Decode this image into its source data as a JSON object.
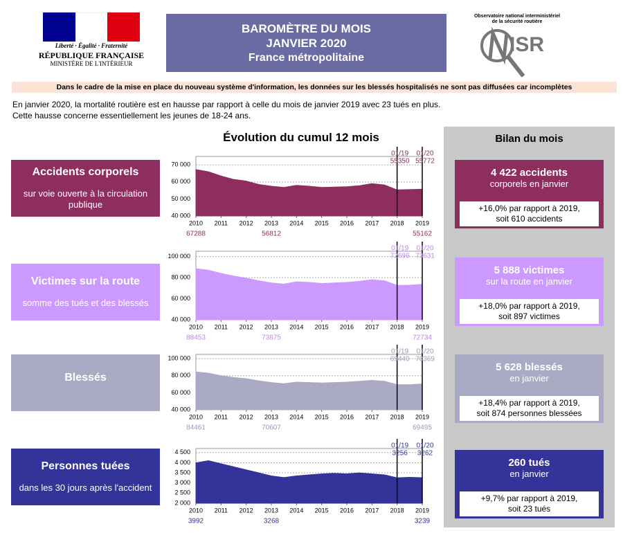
{
  "header": {
    "motto": "Liberté · Égalité · Fraternité",
    "republic": "RÉPUBLIQUE FRANÇAISE",
    "ministry": "MINISTÈRE DE L'INTÉRIEUR",
    "title": [
      "BAROMÈTRE DU MOIS",
      "JANVIER 2020",
      "France métropolitaine"
    ],
    "observatory": [
      "Observatoire national interministériel",
      "de la sécurité routière"
    ],
    "logo": "ISR"
  },
  "notice": "Dans le cadre de la mise en place du nouveau système d'information, les données sur les blessés hospitalisés ne sont pas diffusées car incomplètes",
  "intro": [
    "En janvier 2020, la mortalité routière est en hausse par rapport à celle du mois de janvier 2019 avec 23 tués en plus.",
    "Cette hausse concerne essentiellement les jeunes de 18-24 ans."
  ],
  "chart_title": "Évolution du cumul 12 mois",
  "summary_title": "Bilan du mois",
  "sections": [
    {
      "label": "Accidents corporels",
      "sublabel": "sur voie ouverte à la circulation publique",
      "summary": {
        "headline": "4 422 accidents",
        "subline": "corporels en janvier",
        "comparison": [
          "+16,0% par rapport à 2019,",
          "soit 610 accidents"
        ]
      }
    },
    {
      "label": "Victimes sur la route",
      "sublabel": "somme des tués et des blessés",
      "summary": {
        "headline": "5 888 victimes",
        "subline": "sur la route en janvier",
        "comparison": [
          "+18,0% par rapport à 2019,",
          "soit 897 victimes"
        ]
      }
    },
    {
      "label": "Blessés",
      "summary": {
        "headline": "5 628 blessés",
        "subline": "en janvier",
        "comparison": [
          "+18,4% par rapport à 2019,",
          "soit 874 personnes blessées"
        ]
      }
    },
    {
      "label": "Personnes tuées",
      "sublabel": "dans les 30 jours après l'accident",
      "summary": {
        "headline": "260 tués",
        "subline": "en janvier",
        "comparison": [
          "+9,7% par rapport à 2019,",
          "soit 23 tués"
        ]
      }
    }
  ],
  "chart_data": [
    {
      "type": "area",
      "color": "#8e2e5e",
      "text_color": "#8e2e5e",
      "x": [
        2010,
        2010.5,
        2011,
        2011.5,
        2012,
        2012.5,
        2013,
        2013.5,
        2014,
        2014.5,
        2015,
        2015.5,
        2016,
        2016.5,
        2017,
        2017.5,
        2018,
        2018.5,
        2019
      ],
      "values": [
        67288,
        66000,
        63500,
        61500,
        60500,
        58500,
        57500,
        56812,
        58000,
        57500,
        56800,
        57000,
        57200,
        57800,
        59000,
        58200,
        55350,
        55500,
        55772
      ],
      "xlim": [
        2010,
        2019
      ],
      "xticks": [
        2010,
        2011,
        2012,
        2013,
        2014,
        2015,
        2016,
        2017,
        2018,
        2019
      ],
      "ylim": [
        40000,
        75000
      ],
      "yticks": [
        {
          "value": 40000,
          "label": "40 000"
        },
        {
          "value": 50000,
          "label": "50 000"
        },
        {
          "value": 60000,
          "label": "60 000"
        },
        {
          "value": 70000,
          "label": "70 000"
        }
      ],
      "grid": true,
      "markers": [
        {
          "x": 2018,
          "label": "01/19",
          "value": 55350
        },
        {
          "x": 2019,
          "label": "01/20",
          "value": 55772
        }
      ],
      "notes": [
        {
          "x": 2010,
          "value": 67288
        },
        {
          "x": 2013,
          "value": 56812
        },
        {
          "x": 2019,
          "value": 55162
        }
      ]
    },
    {
      "type": "area",
      "color": "#cc99ff",
      "text_color": "#b98ae8",
      "x": [
        2010,
        2010.5,
        2011,
        2011.5,
        2012,
        2012.5,
        2013,
        2013.5,
        2014,
        2014.5,
        2015,
        2015.5,
        2016,
        2016.5,
        2017,
        2017.5,
        2018,
        2018.5,
        2019
      ],
      "values": [
        88453,
        87000,
        84000,
        81500,
        79500,
        77000,
        75000,
        73875,
        76000,
        75500,
        74500,
        75000,
        75500,
        76500,
        78000,
        77000,
        72696,
        72800,
        73631
      ],
      "xlim": [
        2010,
        2019
      ],
      "xticks": [
        2010,
        2011,
        2012,
        2013,
        2014,
        2015,
        2016,
        2017,
        2018,
        2019
      ],
      "ylim": [
        40000,
        105000
      ],
      "yticks": [
        {
          "value": 40000,
          "label": "40 000"
        },
        {
          "value": 60000,
          "label": "60 000"
        },
        {
          "value": 80000,
          "label": "80 000"
        },
        {
          "value": 100000,
          "label": "100 000"
        }
      ],
      "grid": true,
      "markers": [
        {
          "x": 2018,
          "label": "01/19",
          "value": 72696
        },
        {
          "x": 2019,
          "label": "01/20",
          "value": 73631
        }
      ],
      "notes": [
        {
          "x": 2010,
          "value": 88453
        },
        {
          "x": 2013,
          "value": 73875
        },
        {
          "x": 2019,
          "value": 72734
        }
      ]
    },
    {
      "type": "area",
      "color": "#aaaac4",
      "text_color": "#9a9ab4",
      "x": [
        2010,
        2010.5,
        2011,
        2011.5,
        2012,
        2012.5,
        2013,
        2013.5,
        2014,
        2014.5,
        2015,
        2015.5,
        2016,
        2016.5,
        2017,
        2017.5,
        2018,
        2018.5,
        2019
      ],
      "values": [
        84461,
        83000,
        80000,
        78000,
        76500,
        74000,
        72000,
        70607,
        72500,
        72000,
        71500,
        72000,
        72500,
        73500,
        74500,
        73500,
        69440,
        69500,
        70369
      ],
      "xlim": [
        2010,
        2019
      ],
      "xticks": [
        2010,
        2011,
        2012,
        2013,
        2014,
        2015,
        2016,
        2017,
        2018,
        2019
      ],
      "ylim": [
        40000,
        105000
      ],
      "yticks": [
        {
          "value": 40000,
          "label": "40 000"
        },
        {
          "value": 60000,
          "label": "60 000"
        },
        {
          "value": 80000,
          "label": "80 000"
        },
        {
          "value": 100000,
          "label": "100 000"
        }
      ],
      "grid": true,
      "markers": [
        {
          "x": 2018,
          "label": "01/19",
          "value": 69440
        },
        {
          "x": 2019,
          "label": "01/20",
          "value": 70369
        }
      ],
      "notes": [
        {
          "x": 2010,
          "value": 84461
        },
        {
          "x": 2013,
          "value": 70607
        },
        {
          "x": 2019,
          "value": 69495
        }
      ]
    },
    {
      "type": "area",
      "color": "#333399",
      "text_color": "#333399",
      "x": [
        2010,
        2010.5,
        2011,
        2011.5,
        2012,
        2012.5,
        2013,
        2013.5,
        2014,
        2014.5,
        2015,
        2015.5,
        2016,
        2016.5,
        2017,
        2017.5,
        2018,
        2018.5,
        2019
      ],
      "values": [
        3992,
        4100,
        3950,
        3800,
        3650,
        3500,
        3350,
        3268,
        3350,
        3400,
        3450,
        3480,
        3450,
        3500,
        3450,
        3400,
        3256,
        3280,
        3262
      ],
      "xlim": [
        2010,
        2019
      ],
      "xticks": [
        2010,
        2011,
        2012,
        2013,
        2014,
        2015,
        2016,
        2017,
        2018,
        2019
      ],
      "ylim": [
        2000,
        4700
      ],
      "yticks": [
        {
          "value": 2000,
          "label": "2 000"
        },
        {
          "value": 2500,
          "label": "2 500"
        },
        {
          "value": 3000,
          "label": "3 000"
        },
        {
          "value": 3500,
          "label": "3 500"
        },
        {
          "value": 4000,
          "label": "4 000"
        },
        {
          "value": 4500,
          "label": "4 500"
        }
      ],
      "grid": true,
      "markers": [
        {
          "x": 2018,
          "label": "01/19",
          "value": 3256
        },
        {
          "x": 2019,
          "label": "01/20",
          "value": 3262
        }
      ],
      "notes": [
        {
          "x": 2010,
          "value": 3992
        },
        {
          "x": 2013,
          "value": 3268
        },
        {
          "x": 2019,
          "value": 3239
        }
      ]
    }
  ]
}
